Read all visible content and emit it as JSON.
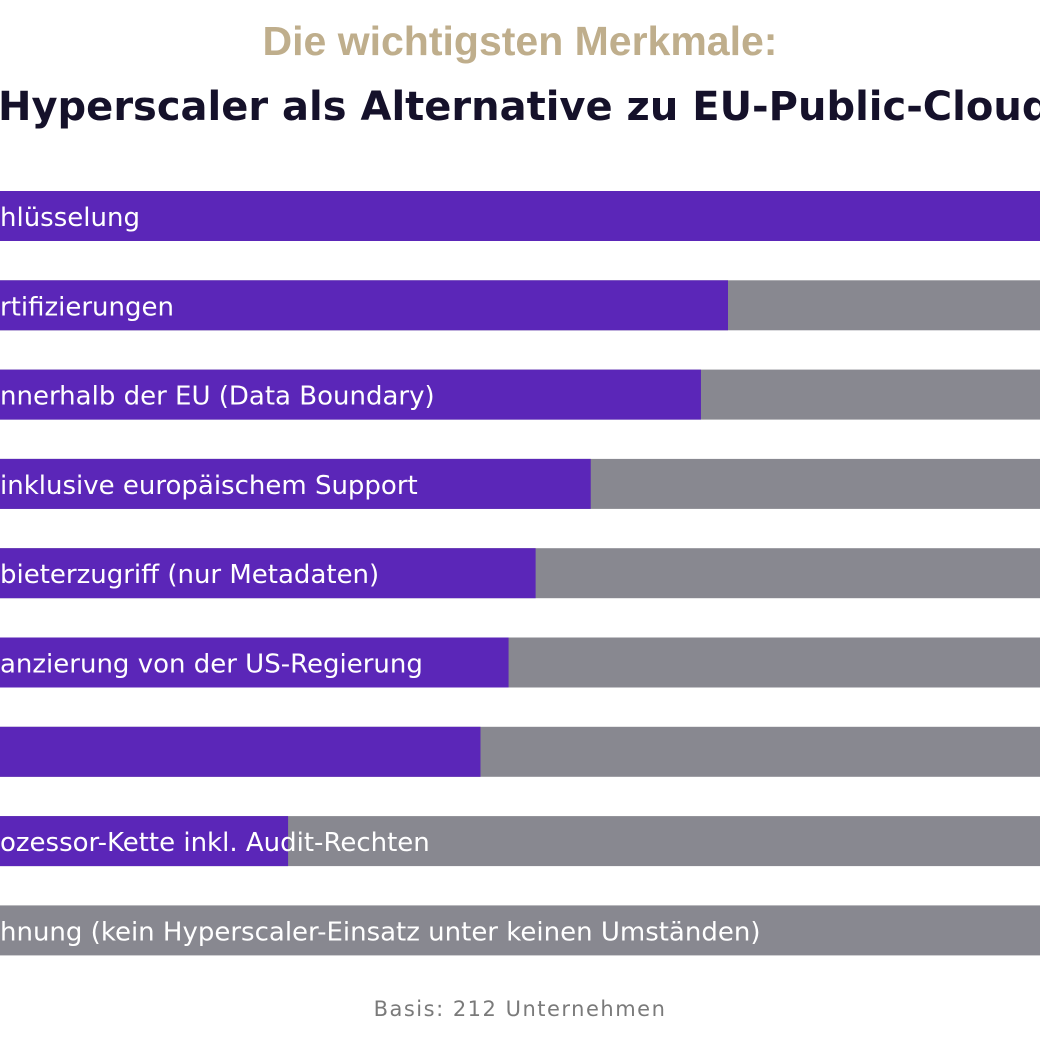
{
  "header": {
    "title": "Die wichtigsten Merkmale:",
    "subtitle": "Hyperscaler als Alternative zu EU-Public-Cloud"
  },
  "colors": {
    "filled": "#5b26b8",
    "remainder": "#888890",
    "title": "#bfae8c",
    "subtitle": "#15112a"
  },
  "chart_data": {
    "type": "bar",
    "orientation": "horizontal",
    "stacked_to_100": true,
    "categories": [
      "hlüsselung",
      "rtifizierungen",
      "nnerhalb der EU (Data Boundary)",
      "inklusive europäischem Support",
      "bieterzugriff (nur Metadaten)",
      "anzierung von der US-Regierung",
      "",
      "ozessor-Kette inkl. Audit-Rechten",
      "hnung (kein Hyperscaler-Einsatz unter keinen Umständen)"
    ],
    "values": [
      100,
      70,
      67.4,
      56.8,
      51.5,
      48.9,
      46.2,
      27.7,
      0
    ],
    "xlim": [
      0,
      100
    ],
    "legend": "none",
    "grid": false
  },
  "footer": {
    "basis": "Basis: 212 Unternehmen"
  }
}
